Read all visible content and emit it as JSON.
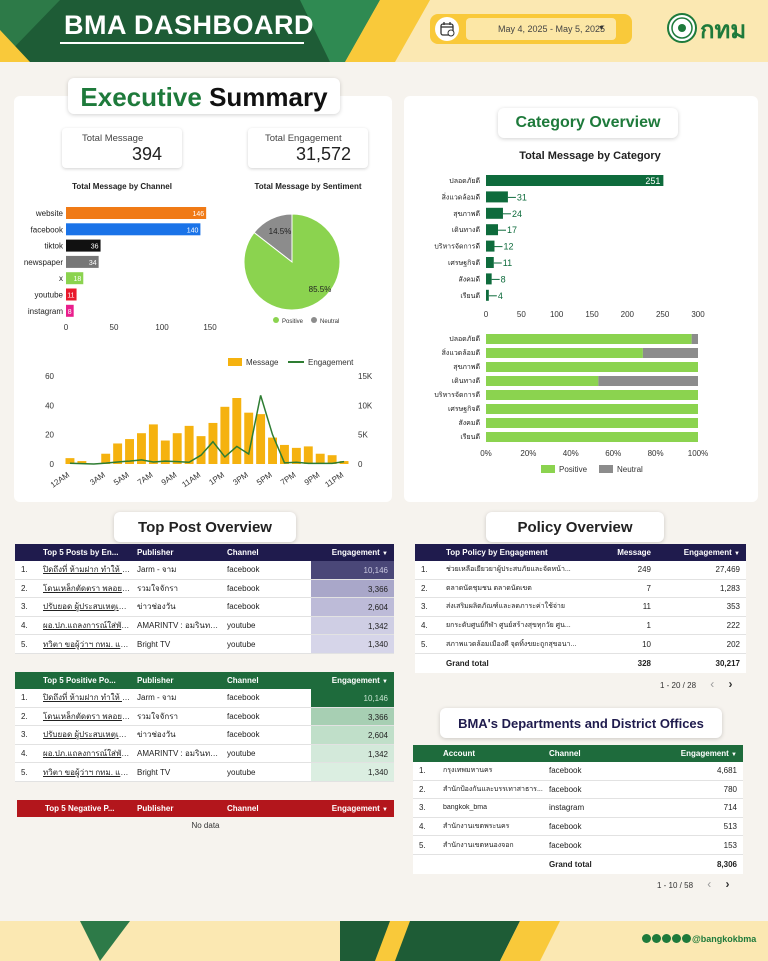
{
  "header": {
    "title": "BMA DASHBOARD",
    "date_range": "May 4, 2025 - May 5, 2025",
    "logo_text": "กทม",
    "colors": {
      "dark_green": "#1e5c36",
      "yellow": "#f9c93a"
    }
  },
  "executive": {
    "title_part1": "Executive",
    "title_part2": "Summary",
    "total_message_label": "Total Message",
    "total_message_value": "394",
    "total_engagement_label": "Total Engagement",
    "total_engagement_value": "31,572"
  },
  "charts": {
    "channel_title": "Total Message by Channel",
    "sentiment_title": "Total Message by Sentiment",
    "category_title": "Total Message by Category"
  },
  "chart_data": [
    {
      "type": "bar",
      "title": "Total Message by Channel",
      "orientation": "horizontal",
      "categories": [
        "website",
        "facebook",
        "tiktok",
        "newspaper",
        "x",
        "youtube",
        "instagram"
      ],
      "values": [
        146,
        140,
        36,
        34,
        18,
        11,
        8
      ],
      "colors": [
        "#f07a16",
        "#1a73e8",
        "#111111",
        "#777777",
        "#8bd34f",
        "#e8192c",
        "#e91e8c"
      ],
      "xlim": [
        0,
        150
      ],
      "xticks": [
        0,
        50,
        100,
        150
      ]
    },
    {
      "type": "pie",
      "title": "Total Message by Sentiment",
      "labels": [
        "Positive",
        "Neutral"
      ],
      "values": [
        85.5,
        14.5
      ],
      "display": [
        "85.5%",
        "14.5%"
      ],
      "colors": [
        "#8bd34f",
        "#8c8c8c"
      ],
      "legend": "bottom"
    },
    {
      "type": "bar",
      "title": "",
      "series": [
        {
          "name": "Message",
          "values": [
            4,
            2,
            0,
            7,
            14,
            17,
            21,
            27,
            16,
            21,
            26,
            19,
            28,
            39,
            45,
            35,
            34,
            18,
            13,
            11,
            12,
            7,
            6,
            2
          ]
        },
        {
          "name": "Engagement",
          "values": [
            120,
            60,
            0,
            150,
            350,
            500,
            700,
            350,
            500,
            400,
            300,
            1500,
            3800,
            1200,
            3000,
            1700,
            11700,
            5000,
            200,
            300,
            100,
            100,
            100,
            400
          ]
        }
      ],
      "categories": [
        "12AM",
        "1AM",
        "2AM",
        "3AM",
        "4AM",
        "5AM",
        "6AM",
        "7AM",
        "8AM",
        "9AM",
        "10AM",
        "11AM",
        "12PM",
        "1PM",
        "2PM",
        "3PM",
        "4PM",
        "5PM",
        "6PM",
        "7PM",
        "8PM",
        "9PM",
        "10PM",
        "11PM"
      ],
      "tick_labels": [
        "12AM",
        "3AM",
        "5AM",
        "7AM",
        "9AM",
        "11AM",
        "1PM",
        "3PM",
        "5PM",
        "7PM",
        "9PM",
        "11PM"
      ],
      "ylim_left": [
        0,
        60
      ],
      "yticks_left": [
        0,
        20,
        40,
        60
      ],
      "ylim_right": [
        0,
        15000
      ],
      "yticks_right": [
        "0",
        "5K",
        "10K",
        "15K"
      ],
      "legend": "top"
    },
    {
      "type": "bar",
      "title": "Total Message by Category",
      "orientation": "horizontal",
      "categories": [
        "ปลอดภัยดี",
        "สิ่งแวดล้อมดี",
        "สุขภาพดี",
        "เดินทางดี",
        "บริหารจัดการดี",
        "เศรษฐกิจดี",
        "สังคมดี",
        "เรียนดี"
      ],
      "values": [
        251,
        31,
        24,
        17,
        12,
        11,
        8,
        4
      ],
      "xlim": [
        0,
        300
      ],
      "xticks": [
        0,
        50,
        100,
        150,
        200,
        250,
        300
      ]
    },
    {
      "type": "bar",
      "title": "",
      "orientation": "horizontal",
      "stacked": "percent",
      "categories": [
        "ปลอดภัยดี",
        "สิ่งแวดล้อมดี",
        "สุขภาพดี",
        "เดินทางดี",
        "บริหารจัดการดี",
        "เศรษฐกิจดี",
        "สังคมดี",
        "เรียนดี"
      ],
      "series": [
        {
          "name": "Positive",
          "values": [
            97,
            74,
            100,
            53,
            100,
            100,
            100,
            100
          ]
        },
        {
          "name": "Neutral",
          "values": [
            3,
            26,
            0,
            47,
            0,
            0,
            0,
            0
          ]
        }
      ],
      "xticks": [
        "0%",
        "20%",
        "40%",
        "60%",
        "80%",
        "100%"
      ],
      "legend": "bottom"
    }
  ],
  "category": {
    "title": "Category Overview"
  },
  "top_post": {
    "title": "Top Post Overview",
    "headers": [
      "Top 5 Posts by En...",
      "Publisher",
      "Channel",
      "Engagement"
    ],
    "rows": [
      {
        "n": "1.",
        "post": "ปิดถึงที่ ห้ามฝาก ทำให้ ผิดฯ",
        "publisher": "Jarm - จาม",
        "channel": "facebook",
        "eng": "10,146"
      },
      {
        "n": "2.",
        "post": "โดนเหล็กตัดตรา พลอยให้ที่ ...",
        "publisher": "รวมใจจักรา",
        "channel": "facebook",
        "eng": "3,366"
      },
      {
        "n": "3.",
        "post": "ปรับยอด ผู้ประสบเหตุเพิ่ม...",
        "publisher": "ข่าวช่องวัน",
        "channel": "facebook",
        "eng": "2,604"
      },
      {
        "n": "4.",
        "post": "ผอ.ปภ.แถลงการณ์ใส่พัด...",
        "publisher": "AMARINTV : อมรินทร์ทีวี",
        "channel": "youtube",
        "eng": "1,342"
      },
      {
        "n": "5.",
        "post": "ทวิตา ขอผู้ว่าฯ กทม. แถล...",
        "publisher": "Bright TV",
        "channel": "youtube",
        "eng": "1,340"
      }
    ],
    "positive_headers": [
      "Top 5 Positive Po...",
      "Publisher",
      "Channel",
      "Engagement"
    ],
    "positive_rows": [
      {
        "n": "1.",
        "post": "ปิดถึงที่ ห้ามฝาก ทำให้ ผิดฯ",
        "publisher": "Jarm - จาม",
        "channel": "facebook",
        "eng": "10,146"
      },
      {
        "n": "2.",
        "post": "โดนเหล็กตัดตรา พลอยให้ที่ ...",
        "publisher": "รวมใจจักรา",
        "channel": "facebook",
        "eng": "3,366"
      },
      {
        "n": "3.",
        "post": "ปรับยอด ผู้ประสบเหตุเพิ่ม...",
        "publisher": "ข่าวช่องวัน",
        "channel": "facebook",
        "eng": "2,604"
      },
      {
        "n": "4.",
        "post": "ผอ.ปภ.แถลงการณ์ใส่พัด...",
        "publisher": "AMARINTV : อมรินทร์ทีวี",
        "channel": "youtube",
        "eng": "1,342"
      },
      {
        "n": "5.",
        "post": "ทวิตา ขอผู้ว่าฯ กทม. แถล...",
        "publisher": "Bright TV",
        "channel": "youtube",
        "eng": "1,340"
      }
    ],
    "negative_headers": [
      "Top 5 Negative P...",
      "Publisher",
      "Channel",
      "Engagement"
    ],
    "no_data": "No data"
  },
  "policy": {
    "title": "Policy Overview",
    "headers": [
      "Top Policy by Engagement",
      "Message",
      "Engagement"
    ],
    "rows": [
      {
        "n": "1.",
        "name": "ช่วยเหลือเยียวยาผู้ประสบภัยและจัดหน้า...",
        "msg": "249",
        "eng": "27,469"
      },
      {
        "n": "2.",
        "name": "ตลาดนัดชุมชน ตลาดนัดเขต",
        "msg": "7",
        "eng": "1,283"
      },
      {
        "n": "3.",
        "name": "ส่งเสริมผลิตภัณฑ์และลดภาระค่าใช้จ่าย",
        "msg": "11",
        "eng": "353"
      },
      {
        "n": "4.",
        "name": "ยกระดับศูนย์กีฬา ศูนย์สร้างสุขทุกวัย ศูน...",
        "msg": "1",
        "eng": "222"
      },
      {
        "n": "5.",
        "name": "สภาพแวดล้อมเมืองดี จุดทิ้งขยะถูกสุขอนา...",
        "msg": "10",
        "eng": "202"
      }
    ],
    "total_label": "Grand total",
    "total_msg": "328",
    "total_eng": "30,217",
    "pager": "1 - 20 / 28"
  },
  "departments": {
    "title": "BMA's Departments and District Offices",
    "headers": [
      "Account",
      "Channel",
      "Engagement"
    ],
    "rows": [
      {
        "n": "1.",
        "account": "กรุงเทพมหานคร",
        "channel": "facebook",
        "eng": "4,681"
      },
      {
        "n": "2.",
        "account": "สำนักป้องกันและบรรเทาสาธาร...",
        "channel": "facebook",
        "eng": "780"
      },
      {
        "n": "3.",
        "account": "bangkok_bma",
        "channel": "instagram",
        "eng": "714"
      },
      {
        "n": "4.",
        "account": "สำนักงานเขตพระนคร",
        "channel": "facebook",
        "eng": "513"
      },
      {
        "n": "5.",
        "account": "สำนักงานเขตหนองจอก",
        "channel": "facebook",
        "eng": "153"
      }
    ],
    "total_label": "Grand total",
    "total_eng": "8,306",
    "pager": "1 - 10 / 58"
  },
  "footer": {
    "handle": "@bangkokbma"
  }
}
